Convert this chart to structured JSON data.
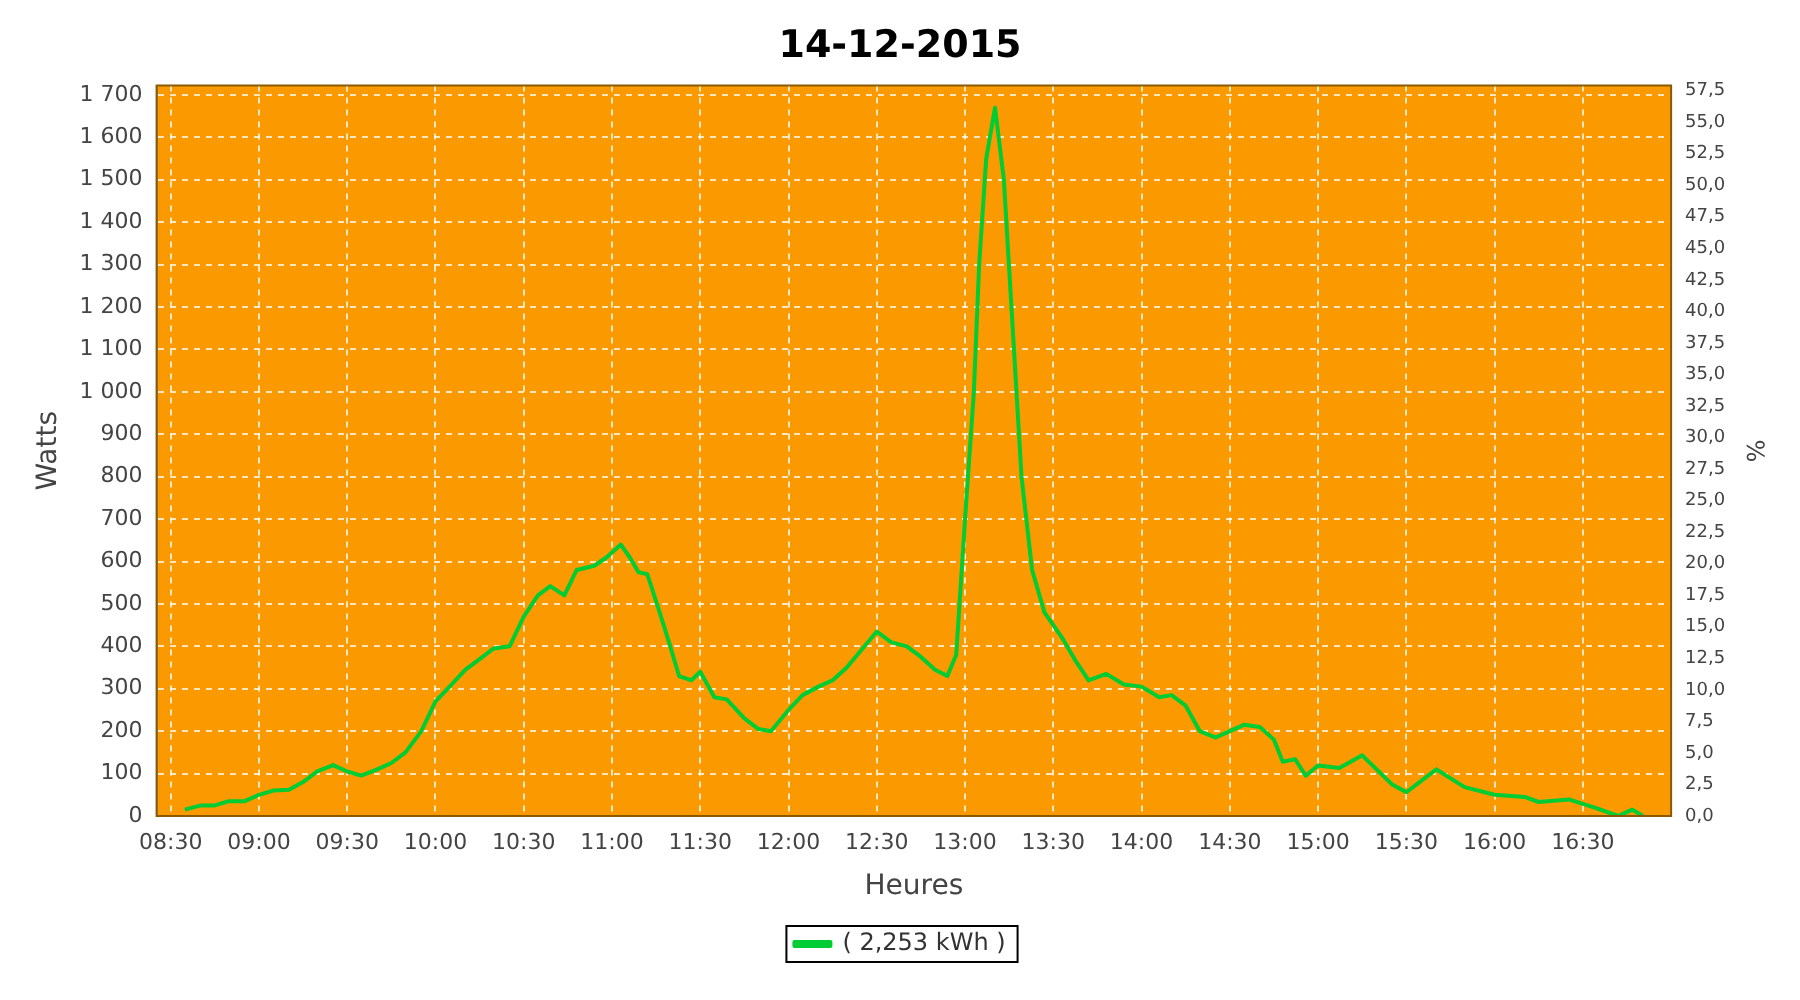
{
  "chart_data": {
    "type": "line",
    "title": "14-12-2015",
    "xlabel": "Heures",
    "ylabel": "Watts",
    "y2label": "%",
    "x": [
      8.58,
      8.67,
      8.75,
      8.83,
      8.92,
      9.0,
      9.08,
      9.17,
      9.25,
      9.33,
      9.42,
      9.5,
      9.58,
      9.67,
      9.75,
      9.83,
      9.92,
      10.0,
      10.08,
      10.17,
      10.25,
      10.33,
      10.42,
      10.5,
      10.58,
      10.65,
      10.73,
      10.8,
      10.9,
      10.97,
      11.05,
      11.1,
      11.15,
      11.2,
      11.27,
      11.33,
      11.38,
      11.45,
      11.5,
      11.58,
      11.65,
      11.75,
      11.83,
      11.9,
      12.0,
      12.08,
      12.17,
      12.25,
      12.33,
      12.42,
      12.5,
      12.58,
      12.67,
      12.75,
      12.83,
      12.9,
      12.95,
      13.0,
      13.05,
      13.08,
      13.12,
      13.17,
      13.22,
      13.27,
      13.32,
      13.38,
      13.45,
      13.55,
      13.62,
      13.7,
      13.8,
      13.9,
      14.0,
      14.1,
      14.17,
      14.25,
      14.33,
      14.42,
      14.5,
      14.58,
      14.67,
      14.75,
      14.8,
      14.87,
      14.93,
      15.0,
      15.12,
      15.25,
      15.42,
      15.5,
      15.67,
      15.83,
      16.0,
      16.17,
      16.25,
      16.42,
      16.58,
      16.7,
      16.78,
      16.84
    ],
    "series": [
      {
        "name": "( 2,253 kWh )",
        "color": "#00cc33",
        "values": [
          15,
          25,
          25,
          35,
          35,
          50,
          60,
          62,
          80,
          105,
          120,
          105,
          95,
          110,
          125,
          150,
          200,
          270,
          305,
          345,
          370,
          395,
          400,
          470,
          520,
          542,
          520,
          580,
          590,
          610,
          640,
          610,
          575,
          570,
          480,
          400,
          330,
          320,
          340,
          280,
          275,
          230,
          205,
          200,
          250,
          285,
          305,
          320,
          350,
          395,
          435,
          410,
          400,
          375,
          345,
          330,
          380,
          700,
          1000,
          1300,
          1550,
          1670,
          1500,
          1150,
          800,
          580,
          480,
          420,
          370,
          320,
          335,
          310,
          305,
          280,
          285,
          260,
          200,
          185,
          200,
          215,
          210,
          180,
          128,
          134,
          95,
          119,
          113,
          143,
          74,
          56,
          110,
          68,
          50,
          45,
          33,
          39,
          18,
          0,
          15,
          0
        ]
      }
    ],
    "xlim": [
      8.42,
      17.0
    ],
    "xticks": [
      {
        "value": 8.5,
        "label": "08:30"
      },
      {
        "value": 9,
        "label": "09:00"
      },
      {
        "value": 9.5,
        "label": "09:30"
      },
      {
        "value": 10,
        "label": "10:00"
      },
      {
        "value": 10.5,
        "label": "10:30"
      },
      {
        "value": 11,
        "label": "11:00"
      },
      {
        "value": 11.5,
        "label": "11:30"
      },
      {
        "value": 12,
        "label": "12:00"
      },
      {
        "value": 12.5,
        "label": "12:30"
      },
      {
        "value": 13,
        "label": "13:00"
      },
      {
        "value": 13.5,
        "label": "13:30"
      },
      {
        "value": 14,
        "label": "14:00"
      },
      {
        "value": 14.5,
        "label": "14:30"
      },
      {
        "value": 15,
        "label": "15:00"
      },
      {
        "value": 15.5,
        "label": "15:30"
      },
      {
        "value": 16,
        "label": "16:00"
      },
      {
        "value": 16.5,
        "label": "16:30"
      }
    ],
    "ylim": [
      0,
      1722
    ],
    "yticks": [
      0,
      100,
      200,
      300,
      400,
      500,
      600,
      700,
      800,
      900,
      {
        "value": 1000,
        "label": "1 000"
      },
      {
        "value": 1100,
        "label": "1 100"
      },
      {
        "value": 1200,
        "label": "1 200"
      },
      {
        "value": 1300,
        "label": "1 300"
      },
      {
        "value": 1400,
        "label": "1 400"
      },
      {
        "value": 1500,
        "label": "1 500"
      },
      {
        "value": 1600,
        "label": "1 600"
      },
      {
        "value": 1700,
        "label": "1 700"
      }
    ],
    "y2lim": [
      0,
      57.9
    ],
    "y2ticks": [
      {
        "value": 0,
        "label": "0,0"
      },
      {
        "value": 2.5,
        "label": "2,5"
      },
      {
        "value": 5,
        "label": "5,0"
      },
      {
        "value": 7.5,
        "label": "7,5"
      },
      {
        "value": 10,
        "label": "10,0"
      },
      {
        "value": 12.5,
        "label": "12,5"
      },
      {
        "value": 15,
        "label": "15,0"
      },
      {
        "value": 17.5,
        "label": "17,5"
      },
      {
        "value": 20,
        "label": "20,0"
      },
      {
        "value": 22.5,
        "label": "22,5"
      },
      {
        "value": 25,
        "label": "25,0"
      },
      {
        "value": 27.5,
        "label": "27,5"
      },
      {
        "value": 30,
        "label": "30,0"
      },
      {
        "value": 32.5,
        "label": "32,5"
      },
      {
        "value": 35,
        "label": "35,0"
      },
      {
        "value": 37.5,
        "label": "37,5"
      },
      {
        "value": 40,
        "label": "40,0"
      },
      {
        "value": 42.5,
        "label": "42,5"
      },
      {
        "value": 45,
        "label": "45,0"
      },
      {
        "value": 47.5,
        "label": "47,5"
      },
      {
        "value": 50,
        "label": "50,0"
      },
      {
        "value": 52.5,
        "label": "52,5"
      },
      {
        "value": 55,
        "label": "55,0"
      },
      {
        "value": 57.5,
        "label": "57,5"
      }
    ],
    "grid": true,
    "legend": "bottom",
    "marker": "none",
    "line_style": "solid"
  }
}
